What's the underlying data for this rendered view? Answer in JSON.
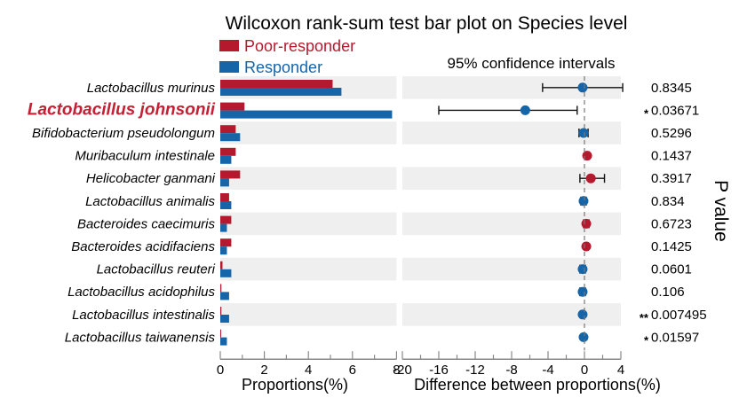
{
  "chart_data": {
    "type": "bar",
    "title": "Wilcoxon rank-sum test bar plot on Species level",
    "ci_title": "95% confidence intervals",
    "xlabel_left": "Proportions(%)",
    "xlabel_right": "Difference between proportions(%)",
    "ylabel_right": "P value",
    "legend": [
      {
        "name": "Poor-responder",
        "color": "#b5192e"
      },
      {
        "name": "Responder",
        "color": "#1565a8"
      }
    ],
    "highlight_color": "#c41f34",
    "left_xlim": [
      0,
      8
    ],
    "left_ticks": [
      "0",
      "2",
      "4",
      "6",
      "8"
    ],
    "right_xlim": [
      -20,
      4
    ],
    "right_ticks": [
      "-20",
      "-16",
      "-12",
      "-8",
      "-4",
      "0",
      "4"
    ],
    "species": [
      {
        "name": "Lactobacillus murinus",
        "poor": 5.1,
        "responder": 5.5,
        "diff": -0.2,
        "ci": [
          -4.6,
          4.2
        ],
        "p": "0.8345",
        "sig": "",
        "highlight": false
      },
      {
        "name": "Lactobacillus johnsonii",
        "poor": 1.1,
        "responder": 7.8,
        "diff": -6.5,
        "ci": [
          -16.0,
          -0.8
        ],
        "p": "0.03671",
        "sig": "*",
        "highlight": true
      },
      {
        "name": "Bifidobacterium pseudolongum",
        "poor": 0.7,
        "responder": 0.9,
        "diff": -0.1,
        "ci": [
          -0.6,
          0.4
        ],
        "p": "0.5296",
        "sig": "",
        "highlight": false
      },
      {
        "name": "Muribaculum intestinale",
        "poor": 0.7,
        "responder": 0.5,
        "diff": 0.3,
        "ci": [
          0.1,
          0.5
        ],
        "p": "0.1437",
        "sig": "",
        "highlight": false
      },
      {
        "name": "Helicobacter ganmani",
        "poor": 0.9,
        "responder": 0.4,
        "diff": 0.7,
        "ci": [
          -0.5,
          2.2
        ],
        "p": "0.3917",
        "sig": "",
        "highlight": false
      },
      {
        "name": "Lactobacillus animalis",
        "poor": 0.4,
        "responder": 0.5,
        "diff": -0.1,
        "ci": [
          -0.4,
          0.2
        ],
        "p": "0.834",
        "sig": "",
        "highlight": false
      },
      {
        "name": "Bacteroides caecimuris",
        "poor": 0.5,
        "responder": 0.3,
        "diff": 0.2,
        "ci": [
          -0.1,
          0.5
        ],
        "p": "0.6723",
        "sig": "",
        "highlight": false
      },
      {
        "name": "Bacteroides acidifaciens",
        "poor": 0.5,
        "responder": 0.3,
        "diff": 0.2,
        "ci": [
          0.0,
          0.4
        ],
        "p": "0.1425",
        "sig": "",
        "highlight": false
      },
      {
        "name": "Lactobacillus reuteri",
        "poor": 0.1,
        "responder": 0.5,
        "diff": -0.2,
        "ci": [
          -0.5,
          0.1
        ],
        "p": "0.0601",
        "sig": "",
        "highlight": false
      },
      {
        "name": "Lactobacillus acidophilus",
        "poor": 0.05,
        "responder": 0.4,
        "diff": -0.2,
        "ci": [
          -0.5,
          0.1
        ],
        "p": "0.106",
        "sig": "",
        "highlight": false
      },
      {
        "name": "Lactobacillus intestinalis",
        "poor": 0.05,
        "responder": 0.4,
        "diff": -0.2,
        "ci": [
          -0.3,
          -0.05
        ],
        "p": "0.007495",
        "sig": "**",
        "highlight": false
      },
      {
        "name": "Lactobacillus taiwanensis",
        "poor": 0.03,
        "responder": 0.3,
        "diff": -0.1,
        "ci": [
          -0.2,
          0.0
        ],
        "p": "0.01597",
        "sig": "*",
        "highlight": false
      }
    ]
  }
}
